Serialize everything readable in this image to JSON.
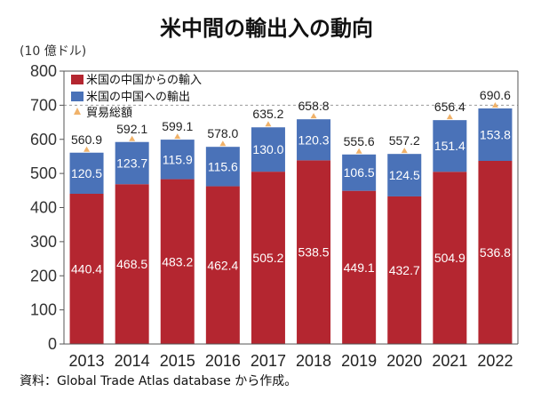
{
  "chart_data": {
    "type": "bar",
    "stacked": true,
    "title": "米中間の輸出入の動向",
    "unit_label": "(10 億ドル)",
    "categories": [
      "2013",
      "2014",
      "2015",
      "2016",
      "2017",
      "2018",
      "2019",
      "2020",
      "2021",
      "2022"
    ],
    "series": [
      {
        "name": "米国の中国からの輸入",
        "color": "#b42630",
        "values": [
          440.4,
          468.5,
          483.2,
          462.4,
          505.2,
          538.5,
          449.1,
          432.7,
          504.9,
          536.8
        ],
        "labels": [
          "440.4",
          "468.5",
          "483.2",
          "462.4",
          "505.2",
          "538.5",
          "449.1",
          "432.7",
          "504.9",
          "536.8"
        ]
      },
      {
        "name": "米国の中国への輸出",
        "color": "#4a72b8",
        "values": [
          120.5,
          123.7,
          115.9,
          115.6,
          130.0,
          120.3,
          106.5,
          124.5,
          151.4,
          153.8
        ],
        "labels": [
          "120.5",
          "123.7",
          "115.9",
          "115.6",
          "130.0",
          "120.3",
          "106.5",
          "124.5",
          "151.4",
          "153.8"
        ]
      }
    ],
    "totals": {
      "name": "貿易総額",
      "marker_color": "#f0b26a",
      "values": [
        560.9,
        592.1,
        599.1,
        578.0,
        635.2,
        658.8,
        555.6,
        557.2,
        656.4,
        690.6
      ],
      "labels": [
        "560.9",
        "592.1",
        "599.1",
        "578.0",
        "635.2",
        "658.8",
        "555.6",
        "557.2",
        "656.4",
        "690.6"
      ]
    },
    "y_ticks": [
      0,
      100,
      200,
      300,
      400,
      500,
      600,
      700,
      800
    ],
    "ylim": [
      0,
      800
    ],
    "grid": "dashed line at 700",
    "legend_position": "top-left",
    "source": "資料：Global Trade Atlas database から作成。"
  }
}
